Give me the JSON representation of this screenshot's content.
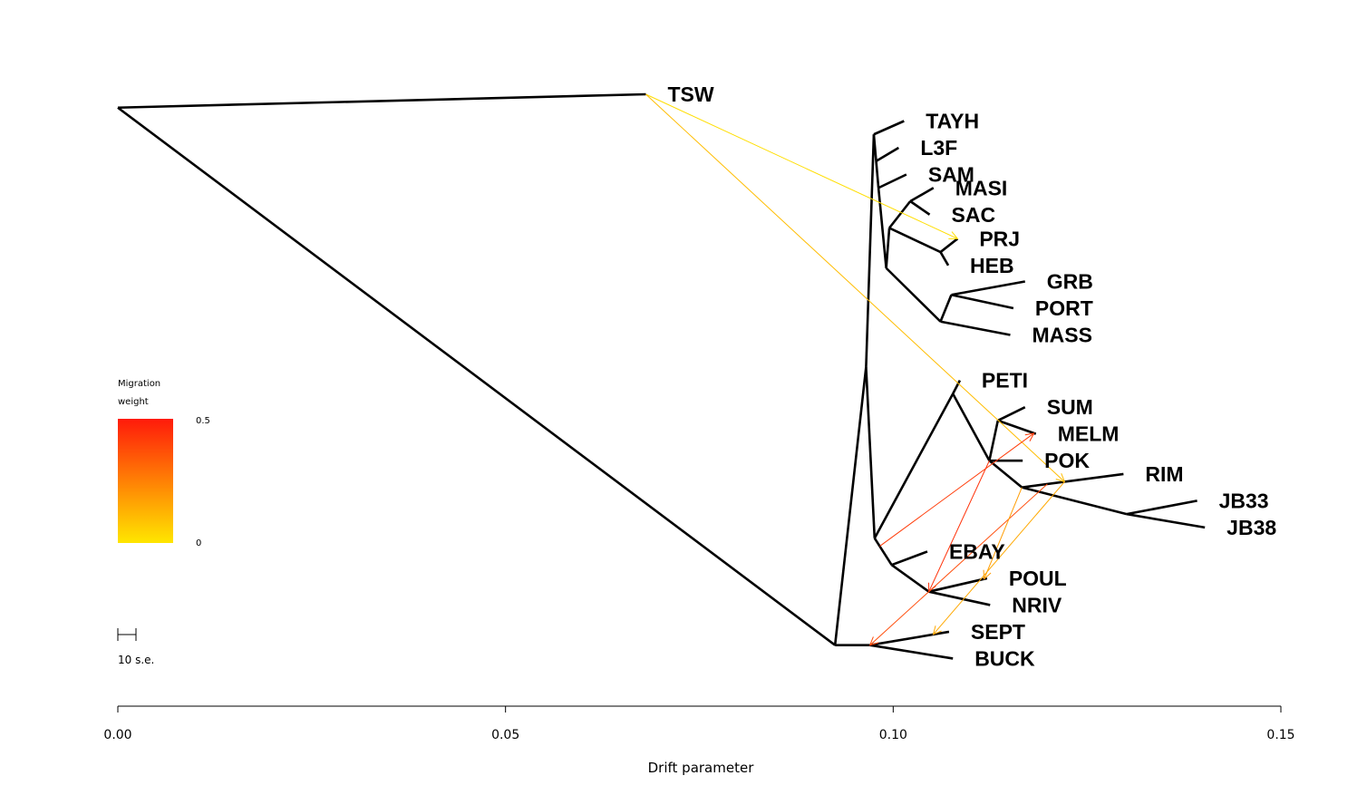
{
  "chart_data": {
    "type": "tree",
    "xlabel": "Drift parameter",
    "xlim": [
      0.0,
      0.15
    ],
    "x_ticks": [
      0.0,
      0.05,
      0.1,
      0.15
    ],
    "x_tick_labels": [
      "0.00",
      "0.05",
      "0.10",
      "0.15"
    ],
    "legend": {
      "title_line1": "Migration",
      "title_line2": "weight",
      "max_label": "0.5",
      "min_label": "0",
      "color_max": "#ff1a0a",
      "color_min": "#ffe600"
    },
    "scale_bar_label": "10 s.e.",
    "nodes": [
      {
        "id": "root",
        "x": 0.0,
        "slot": 1.5
      },
      {
        "id": "TSW",
        "x": 0.0681,
        "slot": 1.0,
        "label": "TSW"
      },
      {
        "id": "n1",
        "x": 0.0925,
        "slot": 21.6
      },
      {
        "id": "n2",
        "x": 0.0965,
        "slot": 11.2
      },
      {
        "id": "n3",
        "x": 0.0975,
        "slot": 2.5
      },
      {
        "id": "TAYH",
        "x": 0.1014,
        "slot": 2.0,
        "label": "TAYH"
      },
      {
        "id": "n4",
        "x": 0.0978,
        "slot": 3.5
      },
      {
        "id": "L3F",
        "x": 0.1007,
        "slot": 3.0,
        "label": "L3F"
      },
      {
        "id": "n5",
        "x": 0.0981,
        "slot": 4.5
      },
      {
        "id": "SAM",
        "x": 0.1017,
        "slot": 4.0,
        "label": "SAM"
      },
      {
        "id": "n6",
        "x": 0.0991,
        "slot": 7.5
      },
      {
        "id": "n7",
        "x": 0.0995,
        "slot": 6.0
      },
      {
        "id": "n8",
        "x": 0.1022,
        "slot": 5.0
      },
      {
        "id": "MASI",
        "x": 0.1052,
        "slot": 4.5,
        "label": "MASI"
      },
      {
        "id": "SAC",
        "x": 0.1047,
        "slot": 5.5,
        "label": "SAC"
      },
      {
        "id": "n9",
        "x": 0.1061,
        "slot": 6.9
      },
      {
        "id": "PRJ",
        "x": 0.1083,
        "slot": 6.4,
        "label": "PRJ"
      },
      {
        "id": "HEB",
        "x": 0.1071,
        "slot": 7.4,
        "label": "HEB"
      },
      {
        "id": "n10",
        "x": 0.1061,
        "slot": 9.5
      },
      {
        "id": "n11",
        "x": 0.1075,
        "slot": 8.5
      },
      {
        "id": "GRB",
        "x": 0.117,
        "slot": 8.0,
        "label": "GRB"
      },
      {
        "id": "PORT",
        "x": 0.1155,
        "slot": 9.0,
        "label": "PORT"
      },
      {
        "id": "MASS",
        "x": 0.1151,
        "slot": 10.0,
        "label": "MASS"
      },
      {
        "id": "n12",
        "x": 0.0976,
        "slot": 17.6
      },
      {
        "id": "n13",
        "x": 0.1077,
        "slot": 12.2
      },
      {
        "id": "PETI",
        "x": 0.1086,
        "slot": 11.7,
        "label": "PETI"
      },
      {
        "id": "n14",
        "x": 0.1124,
        "slot": 14.7
      },
      {
        "id": "n15",
        "x": 0.1135,
        "slot": 13.2
      },
      {
        "id": "SUM",
        "x": 0.117,
        "slot": 12.7,
        "label": "SUM"
      },
      {
        "id": "MELM",
        "x": 0.1184,
        "slot": 13.7,
        "label": "MELM"
      },
      {
        "id": "POK",
        "x": 0.1167,
        "slot": 14.7,
        "label": "POK"
      },
      {
        "id": "n16",
        "x": 0.1166,
        "slot": 15.7
      },
      {
        "id": "RIM",
        "x": 0.1297,
        "slot": 15.2,
        "label": "RIM"
      },
      {
        "id": "n17",
        "x": 0.1301,
        "slot": 16.7
      },
      {
        "id": "JB33",
        "x": 0.1392,
        "slot": 16.2,
        "label": "JB33"
      },
      {
        "id": "JB38",
        "x": 0.1402,
        "slot": 17.2,
        "label": "JB38"
      },
      {
        "id": "n18",
        "x": 0.0998,
        "slot": 18.6
      },
      {
        "id": "EBAY",
        "x": 0.1044,
        "slot": 18.1,
        "label": "EBAY"
      },
      {
        "id": "n19",
        "x": 0.1046,
        "slot": 19.6
      },
      {
        "id": "POUL",
        "x": 0.1121,
        "slot": 19.1,
        "label": "POUL"
      },
      {
        "id": "NRIV",
        "x": 0.1125,
        "slot": 20.1,
        "label": "NRIV"
      },
      {
        "id": "n20",
        "x": 0.097,
        "slot": 21.6
      },
      {
        "id": "SEPT",
        "x": 0.1072,
        "slot": 21.1,
        "label": "SEPT"
      },
      {
        "id": "BUCK",
        "x": 0.1077,
        "slot": 22.1,
        "label": "BUCK"
      }
    ],
    "edges": [
      [
        "root",
        "TSW"
      ],
      [
        "root",
        "n1"
      ],
      [
        "n1",
        "n2"
      ],
      [
        "n1",
        "n20"
      ],
      [
        "n2",
        "n3"
      ],
      [
        "n2",
        "n12"
      ],
      [
        "n3",
        "TAYH"
      ],
      [
        "n3",
        "n4"
      ],
      [
        "n4",
        "L3F"
      ],
      [
        "n4",
        "n5"
      ],
      [
        "n5",
        "SAM"
      ],
      [
        "n5",
        "n6"
      ],
      [
        "n6",
        "n7"
      ],
      [
        "n6",
        "n10"
      ],
      [
        "n7",
        "n8"
      ],
      [
        "n7",
        "n9"
      ],
      [
        "n8",
        "MASI"
      ],
      [
        "n8",
        "SAC"
      ],
      [
        "n9",
        "PRJ"
      ],
      [
        "n9",
        "HEB"
      ],
      [
        "n10",
        "n11"
      ],
      [
        "n10",
        "MASS"
      ],
      [
        "n11",
        "GRB"
      ],
      [
        "n11",
        "PORT"
      ],
      [
        "n12",
        "n13"
      ],
      [
        "n12",
        "n18"
      ],
      [
        "n13",
        "PETI"
      ],
      [
        "n13",
        "n14"
      ],
      [
        "n14",
        "n15"
      ],
      [
        "n14",
        "n16"
      ],
      [
        "n15",
        "SUM"
      ],
      [
        "n15",
        "MELM"
      ],
      [
        "n14",
        "POK"
      ],
      [
        "n16",
        "RIM"
      ],
      [
        "n16",
        "n17"
      ],
      [
        "n17",
        "JB33"
      ],
      [
        "n17",
        "JB38"
      ],
      [
        "n18",
        "EBAY"
      ],
      [
        "n18",
        "n19"
      ],
      [
        "n19",
        "POUL"
      ],
      [
        "n19",
        "NRIV"
      ],
      [
        "n20",
        "SEPT"
      ],
      [
        "n20",
        "BUCK"
      ]
    ],
    "migrations": [
      {
        "from": "TSW",
        "to": "PRJ",
        "weight": 0.02
      },
      {
        "from": "TSW",
        "to": "RIM_mid",
        "weight": 0.1
      },
      {
        "from": "n18_mid",
        "to": "MELM_mid",
        "weight": 0.42
      },
      {
        "from": "POK_mid",
        "to": "n19",
        "weight": 0.44
      },
      {
        "from": "RIM_mid2",
        "to": "n20",
        "weight": 0.38
      },
      {
        "from": "RIM_mid3",
        "to": "POUL_mid",
        "weight": 0.18
      },
      {
        "from": "RIM_mid",
        "to": "SEPT_mid",
        "weight": 0.15
      }
    ]
  }
}
